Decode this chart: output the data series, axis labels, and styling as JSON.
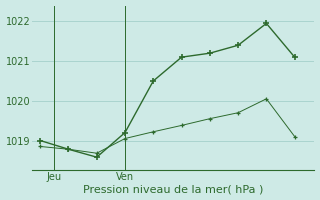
{
  "upper_x": [
    0,
    1,
    2,
    3,
    4,
    5,
    6,
    7,
    8,
    9
  ],
  "upper_y": [
    1019.0,
    1018.78,
    1018.58,
    1019.2,
    1020.5,
    1021.1,
    1021.2,
    1021.4,
    1021.95,
    1021.1
  ],
  "lower_x": [
    0,
    1,
    2,
    3,
    4,
    5,
    6,
    7,
    8,
    9
  ],
  "lower_y": [
    1018.85,
    1018.78,
    1018.68,
    1019.05,
    1019.22,
    1019.38,
    1019.55,
    1019.7,
    1020.05,
    1019.1
  ],
  "vline_jeu_x": 0.5,
  "vline_ven_x": 3.0,
  "jeu_label": "Jeu",
  "ven_label": "Ven",
  "xlabel": "Pression niveau de la mer( hPa )",
  "yticks": [
    1019,
    1020,
    1021,
    1022
  ],
  "ylim": [
    1018.25,
    1022.4
  ],
  "xlim": [
    -0.3,
    9.7
  ],
  "line_color": "#2d6a2d",
  "bg_color": "#ceeae6",
  "grid_color": "#aad4cf",
  "xlabel_fontsize": 8,
  "tick_fontsize": 7
}
